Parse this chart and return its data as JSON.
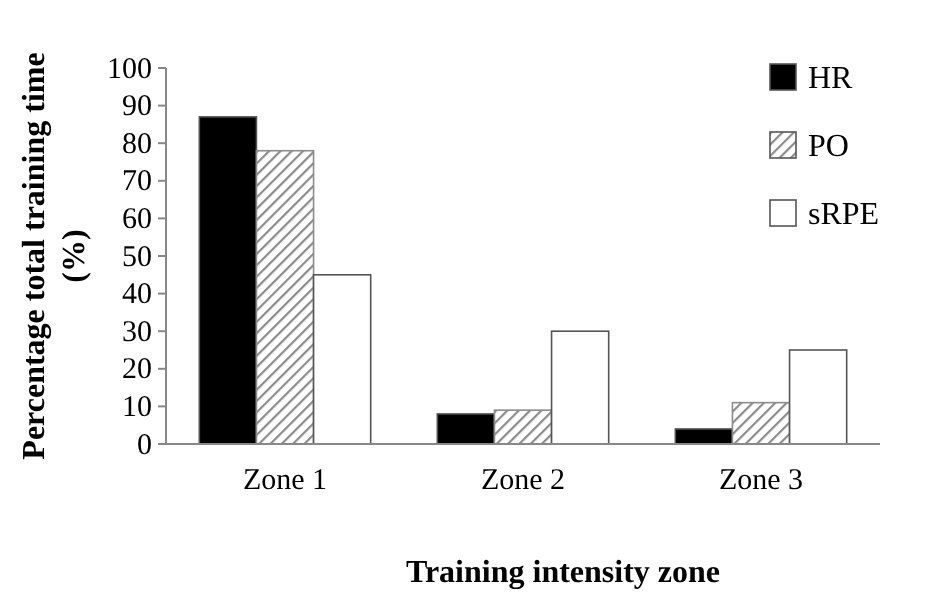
{
  "chart_data": {
    "type": "bar",
    "xlabel": "Training intensity zone",
    "ylabel": "Percentage total training time (%)",
    "categories": [
      "Zone 1",
      "Zone 2",
      "Zone 3"
    ],
    "series": [
      {
        "name": "HR",
        "color": "#000000",
        "values": [
          87,
          8,
          4
        ]
      },
      {
        "name": "PO",
        "color": "#8c8c8c",
        "values": [
          78,
          9,
          11
        ]
      },
      {
        "name": "sRPE",
        "color": "#ffffff",
        "values": [
          45,
          30,
          25
        ]
      }
    ],
    "ylim": [
      0,
      100
    ],
    "yticks": [
      0,
      10,
      20,
      30,
      40,
      50,
      60,
      70,
      80,
      90,
      100
    ],
    "grid": false,
    "legend": "top right"
  }
}
